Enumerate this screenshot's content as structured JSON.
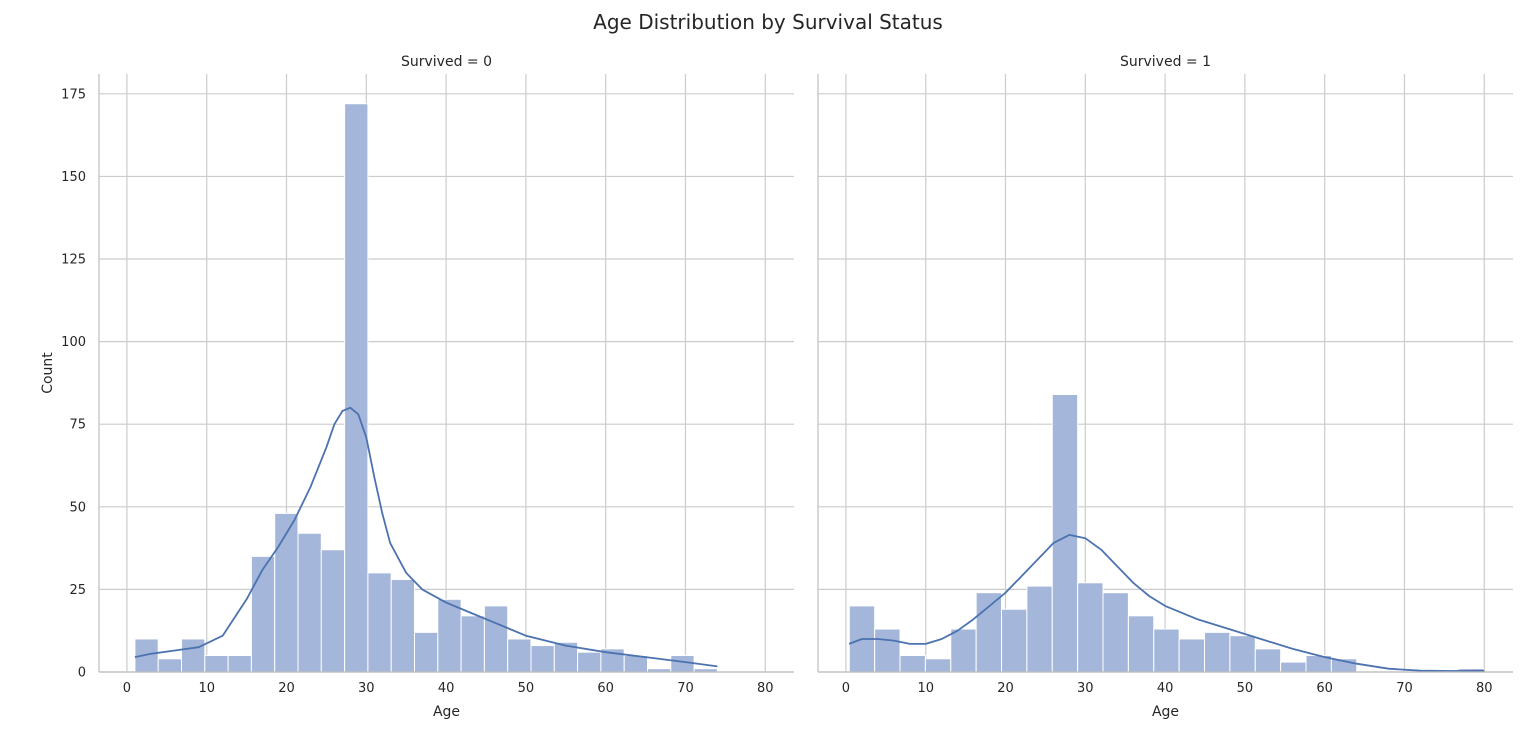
{
  "figure": {
    "title": "Age Distribution by Survival Status"
  },
  "colors": {
    "bar_fill": "#a4b6d9",
    "bar_edge": "#ffffff",
    "kde": "#4c72b0",
    "grid": "#cccccc",
    "spine": "#bfbfbf",
    "text": "#262626"
  },
  "chart_data": [
    {
      "type": "bar",
      "title": "Survived = 0",
      "xlabel": "Age",
      "ylabel": "Count",
      "xlim": [
        -3.5,
        83.6
      ],
      "ylim": [
        0,
        181
      ],
      "xticks": [
        0,
        10,
        20,
        30,
        40,
        50,
        60,
        70,
        80
      ],
      "yticks": [
        0,
        25,
        50,
        75,
        100,
        125,
        150,
        175
      ],
      "grid": true,
      "bin_start": 1,
      "bin_width": 2.92,
      "values": [
        10,
        4,
        10,
        5,
        5,
        35,
        48,
        42,
        37,
        172,
        30,
        28,
        12,
        22,
        17,
        20,
        10,
        8,
        9,
        6,
        7,
        5,
        1,
        5,
        1
      ],
      "kde": {
        "x": [
          1,
          3,
          6,
          9,
          12,
          15,
          17,
          19,
          21,
          23,
          25,
          26,
          27,
          28,
          29,
          30,
          31,
          32,
          33,
          35,
          37,
          40,
          43,
          46,
          50,
          55,
          60,
          65,
          70,
          74
        ],
        "y": [
          4.5,
          5.5,
          6.5,
          7.5,
          11,
          22,
          31,
          38,
          46,
          56,
          68,
          75,
          79,
          80,
          78,
          71,
          59,
          48,
          39,
          30,
          25,
          21,
          18,
          15,
          11,
          8,
          6,
          4.5,
          3,
          1.7
        ]
      }
    },
    {
      "type": "bar",
      "title": "Survived = 1",
      "xlabel": "Age",
      "ylabel": "",
      "xlim": [
        -3.5,
        83.6
      ],
      "ylim": [
        0,
        181
      ],
      "xticks": [
        0,
        10,
        20,
        30,
        40,
        50,
        60,
        70,
        80
      ],
      "yticks": [
        0,
        25,
        50,
        75,
        100,
        125,
        150,
        175
      ],
      "grid": true,
      "bin_start": 0.42,
      "bin_width": 3.18,
      "values": [
        20,
        13,
        5,
        4,
        13,
        24,
        19,
        26,
        84,
        27,
        24,
        17,
        13,
        10,
        12,
        11,
        7,
        3,
        5,
        4,
        0,
        0,
        0,
        0,
        1
      ],
      "kde": {
        "x": [
          0.4,
          2,
          4,
          6,
          8,
          10,
          12,
          14,
          16,
          18,
          20,
          22,
          24,
          26,
          28,
          30,
          32,
          34,
          36,
          38,
          40,
          44,
          48,
          52,
          56,
          60,
          64,
          68,
          72,
          76,
          80
        ],
        "y": [
          8.5,
          10,
          10,
          9.5,
          8.5,
          8.5,
          10,
          12.5,
          16,
          20,
          24,
          29,
          34,
          39,
          41.5,
          40.5,
          37,
          32,
          27,
          23,
          20,
          16,
          13,
          10,
          7,
          4.5,
          2.5,
          1,
          0.4,
          0.3,
          0.4
        ]
      }
    }
  ]
}
